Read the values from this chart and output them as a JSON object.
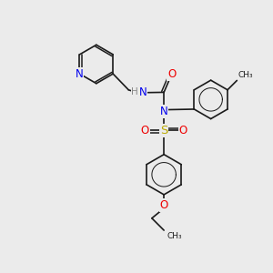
{
  "bg_color": "#ebebeb",
  "atom_colors": {
    "N": "#0000ee",
    "O": "#ee0000",
    "S": "#bbaa00",
    "C": "#000000",
    "H": "#888888"
  },
  "bond_color": "#1a1a1a",
  "bond_width": 1.2,
  "fig_w": 3.0,
  "fig_h": 3.0,
  "dpi": 100
}
